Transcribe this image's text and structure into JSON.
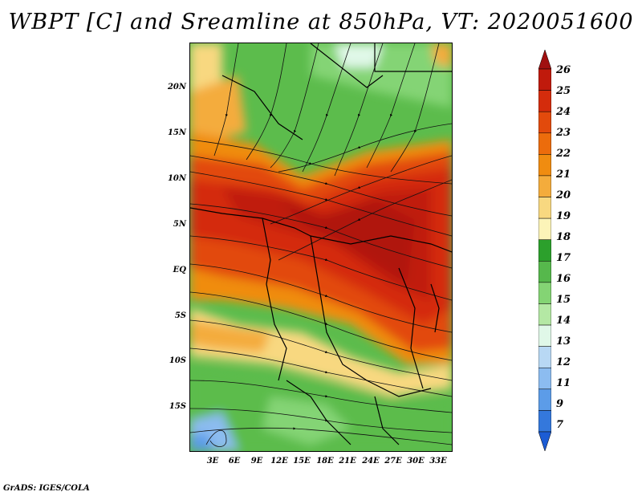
{
  "title": "WBPT [C] and Sreamline at 850hPa, VT: 2020051600",
  "lat_labels": [
    "20N",
    "15N",
    "10N",
    "5N",
    "EQ",
    "5S",
    "10S",
    "15S"
  ],
  "lon_labels": [
    "3E",
    "6E",
    "9E",
    "12E",
    "15E",
    "18E",
    "21E",
    "24E",
    "27E",
    "30E",
    "33E"
  ],
  "colorbar": {
    "labels": [
      "26",
      "25",
      "24",
      "23",
      "22",
      "21",
      "20",
      "19",
      "18",
      "17",
      "16",
      "15",
      "14",
      "13",
      "12",
      "11",
      "9",
      "7"
    ],
    "colors": [
      "#a01010",
      "#c01a0c",
      "#d42c0c",
      "#e24a0c",
      "#ec6c0c",
      "#f08c10",
      "#f4ac3c",
      "#f8d880",
      "#fcf4b8",
      "#2ca02c",
      "#56b84c",
      "#84d474",
      "#b4e8a4",
      "#e0f8e8",
      "#b8d8f4",
      "#8cbcf0",
      "#5c9ce8",
      "#3478dc",
      "#1c5cd4"
    ]
  },
  "footer": "GrADS: IGES/COLA"
}
